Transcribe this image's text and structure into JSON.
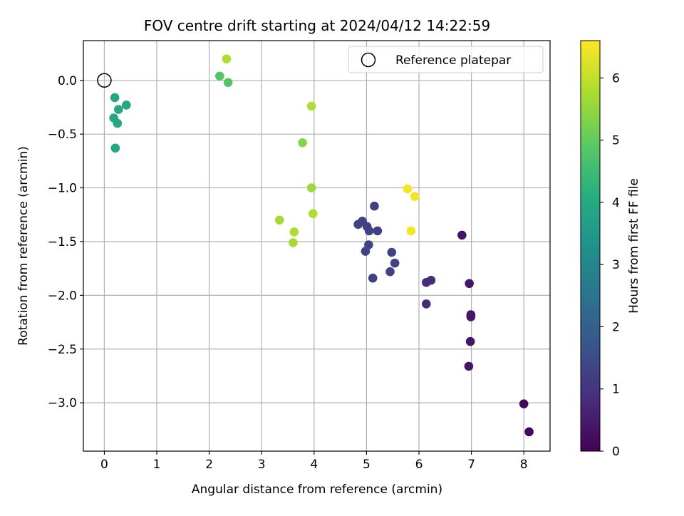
{
  "chart_data": {
    "type": "scatter",
    "title": "FOV centre drift starting at 2024/04/12 14:22:59",
    "xlabel": "Angular distance from reference (arcmin)",
    "ylabel": "Rotation from reference (arcmin)",
    "xlim": [
      -0.4,
      8.5
    ],
    "ylim": [
      -3.45,
      0.37
    ],
    "xticks": [
      0,
      1,
      2,
      3,
      4,
      5,
      6,
      7,
      8
    ],
    "yticks": [
      0.0,
      -0.5,
      -1.0,
      -1.5,
      -2.0,
      -2.5,
      -3.0
    ],
    "xtick_labels": [
      "0",
      "1",
      "2",
      "3",
      "4",
      "5",
      "6",
      "7",
      "8"
    ],
    "ytick_labels": [
      "0.0",
      "−0.5",
      "−1.0",
      "−1.5",
      "−2.0",
      "−2.5",
      "−3.0"
    ],
    "grid": true,
    "legend": {
      "placement": "top-right",
      "entries": [
        "Reference platepar"
      ]
    },
    "colorbar": {
      "label": "Hours from first FF file",
      "range": [
        0,
        6.6
      ],
      "colormap": "viridis",
      "ticks": [
        0,
        1,
        2,
        3,
        4,
        5,
        6
      ],
      "tick_labels": [
        "0",
        "1",
        "2",
        "3",
        "4",
        "5",
        "6"
      ]
    },
    "reference_point": {
      "x": 0,
      "y": 0
    },
    "points": [
      {
        "x": 0.2,
        "y": -0.16,
        "c": 3.9
      },
      {
        "x": 0.42,
        "y": -0.23,
        "c": 3.9
      },
      {
        "x": 0.27,
        "y": -0.27,
        "c": 3.9
      },
      {
        "x": 0.18,
        "y": -0.35,
        "c": 3.9
      },
      {
        "x": 0.25,
        "y": -0.4,
        "c": 3.9
      },
      {
        "x": 0.21,
        "y": -0.63,
        "c": 3.9
      },
      {
        "x": 2.33,
        "y": 0.2,
        "c": 5.8
      },
      {
        "x": 2.2,
        "y": 0.04,
        "c": 4.8
      },
      {
        "x": 2.36,
        "y": -0.02,
        "c": 4.8
      },
      {
        "x": 3.95,
        "y": -0.24,
        "c": 5.8
      },
      {
        "x": 3.78,
        "y": -0.58,
        "c": 5.4
      },
      {
        "x": 3.95,
        "y": -1.0,
        "c": 5.6
      },
      {
        "x": 3.98,
        "y": -1.24,
        "c": 5.8
      },
      {
        "x": 3.34,
        "y": -1.3,
        "c": 5.7
      },
      {
        "x": 3.62,
        "y": -1.41,
        "c": 5.8
      },
      {
        "x": 3.6,
        "y": -1.51,
        "c": 5.7
      },
      {
        "x": 5.15,
        "y": -1.17,
        "c": 1.3
      },
      {
        "x": 4.84,
        "y": -1.34,
        "c": 1.3
      },
      {
        "x": 4.92,
        "y": -1.31,
        "c": 1.3
      },
      {
        "x": 5.01,
        "y": -1.36,
        "c": 1.3
      },
      {
        "x": 5.05,
        "y": -1.4,
        "c": 1.3
      },
      {
        "x": 5.21,
        "y": -1.4,
        "c": 1.3
      },
      {
        "x": 5.04,
        "y": -1.53,
        "c": 1.3
      },
      {
        "x": 4.98,
        "y": -1.59,
        "c": 1.3
      },
      {
        "x": 5.48,
        "y": -1.6,
        "c": 1.3
      },
      {
        "x": 5.54,
        "y": -1.7,
        "c": 1.3
      },
      {
        "x": 5.45,
        "y": -1.78,
        "c": 1.3
      },
      {
        "x": 5.12,
        "y": -1.84,
        "c": 1.3
      },
      {
        "x": 5.78,
        "y": -1.01,
        "c": 6.5
      },
      {
        "x": 5.92,
        "y": -1.08,
        "c": 6.5
      },
      {
        "x": 5.85,
        "y": -1.4,
        "c": 6.5
      },
      {
        "x": 6.14,
        "y": -1.88,
        "c": 0.8
      },
      {
        "x": 6.23,
        "y": -1.86,
        "c": 0.8
      },
      {
        "x": 6.14,
        "y": -2.08,
        "c": 0.8
      },
      {
        "x": 6.82,
        "y": -1.44,
        "c": 0.4
      },
      {
        "x": 6.96,
        "y": -1.89,
        "c": 0.4
      },
      {
        "x": 6.99,
        "y": -2.18,
        "c": 0.4
      },
      {
        "x": 6.99,
        "y": -2.2,
        "c": 0.4
      },
      {
        "x": 6.98,
        "y": -2.43,
        "c": 0.4
      },
      {
        "x": 6.95,
        "y": -2.66,
        "c": 0.4
      },
      {
        "x": 8.0,
        "y": -3.01,
        "c": 0.1
      },
      {
        "x": 8.1,
        "y": -3.27,
        "c": 0.1
      }
    ]
  }
}
